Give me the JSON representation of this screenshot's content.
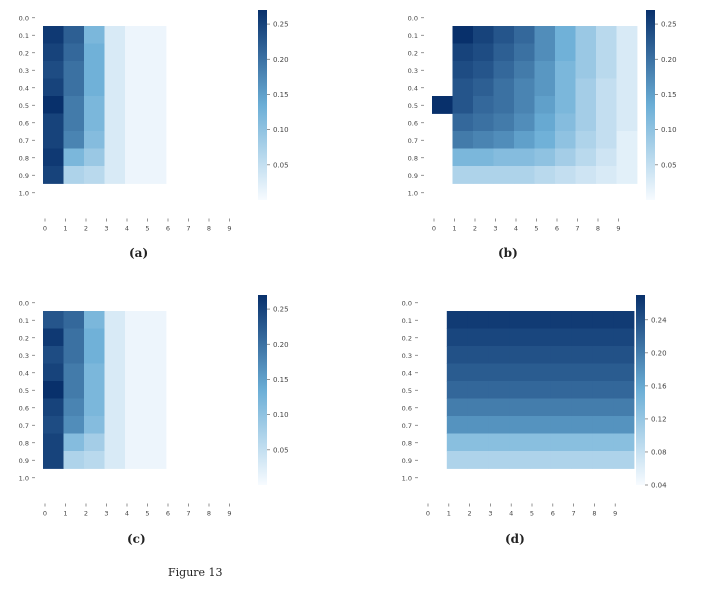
{
  "captions": [
    "(a)",
    "(b)",
    "(c)",
    "(d)"
  ],
  "figure_caption": "Figure 13",
  "colormap": {
    "low": "#f7fbff",
    "mid": "#6baed6",
    "high": "#08306b"
  },
  "chart_data": [
    {
      "type": "heatmap",
      "title": "",
      "x": [
        "0",
        "1",
        "2",
        "3",
        "4",
        "5",
        "6",
        "7",
        "8",
        "9"
      ],
      "y": [
        "0.0",
        "0.1",
        "0.2",
        "0.3",
        "0.4",
        "0.5",
        "0.6",
        "0.7",
        "0.8",
        "0.9",
        "1.0"
      ],
      "colorbar": {
        "min": 0.0,
        "max": 0.27,
        "ticks": [
          "0.25",
          "0.20",
          "0.15",
          "0.10",
          "0.05"
        ]
      },
      "values": [
        [
          0.26,
          0.22,
          0.12,
          0.03,
          0.01,
          0.01
        ],
        [
          0.25,
          0.21,
          0.13,
          0.03,
          0.01,
          0.01
        ],
        [
          0.24,
          0.2,
          0.13,
          0.03,
          0.01,
          0.01
        ],
        [
          0.25,
          0.2,
          0.13,
          0.03,
          0.01,
          0.01
        ],
        [
          0.27,
          0.19,
          0.12,
          0.03,
          0.01,
          0.01
        ],
        [
          0.25,
          0.19,
          0.12,
          0.03,
          0.01,
          0.01
        ],
        [
          0.25,
          0.18,
          0.11,
          0.03,
          0.01,
          0.01
        ],
        [
          0.26,
          0.12,
          0.09,
          0.03,
          0.01,
          0.01
        ],
        [
          0.25,
          0.07,
          0.06,
          0.03,
          0.01,
          0.01
        ]
      ]
    },
    {
      "type": "heatmap",
      "title": "",
      "x": [
        "0",
        "1",
        "2",
        "3",
        "4",
        "5",
        "6",
        "7",
        "8",
        "9"
      ],
      "y": [
        "0.0",
        "0.1",
        "0.2",
        "0.3",
        "0.4",
        "0.5",
        "0.6",
        "0.7",
        "0.8",
        "0.9",
        "1.0"
      ],
      "colorbar": {
        "min": 0.0,
        "max": 0.27,
        "ticks": [
          "0.25",
          "0.20",
          "0.15",
          "0.10",
          "0.05"
        ]
      },
      "values": [
        [
          null,
          0.27,
          0.25,
          0.23,
          0.21,
          0.17,
          0.13,
          0.09,
          0.06,
          0.03
        ],
        [
          null,
          0.25,
          0.24,
          0.22,
          0.2,
          0.17,
          0.13,
          0.09,
          0.06,
          0.03
        ],
        [
          null,
          0.24,
          0.23,
          0.21,
          0.19,
          0.16,
          0.12,
          0.09,
          0.06,
          0.03
        ],
        [
          null,
          0.23,
          0.22,
          0.2,
          0.18,
          0.16,
          0.12,
          0.08,
          0.05,
          0.03
        ],
        [
          0.27,
          0.23,
          0.21,
          0.2,
          0.18,
          0.15,
          0.12,
          0.08,
          0.05,
          0.03
        ],
        [
          null,
          0.21,
          0.2,
          0.19,
          0.17,
          0.14,
          0.11,
          0.08,
          0.05,
          0.03
        ],
        [
          null,
          0.19,
          0.18,
          0.17,
          0.15,
          0.13,
          0.1,
          0.07,
          0.05,
          0.02
        ],
        [
          null,
          0.12,
          0.12,
          0.11,
          0.11,
          0.1,
          0.08,
          0.06,
          0.04,
          0.02
        ],
        [
          null,
          0.07,
          0.07,
          0.07,
          0.07,
          0.06,
          0.05,
          0.04,
          0.03,
          0.02
        ]
      ]
    },
    {
      "type": "heatmap",
      "title": "",
      "x": [
        "0",
        "1",
        "2",
        "3",
        "4",
        "5",
        "6",
        "7",
        "8",
        "9"
      ],
      "y": [
        "0.0",
        "0.1",
        "0.2",
        "0.3",
        "0.4",
        "0.5",
        "0.6",
        "0.7",
        "0.8",
        "0.9",
        "1.0"
      ],
      "colorbar": {
        "min": 0.0,
        "max": 0.27,
        "ticks": [
          "0.25",
          "0.20",
          "0.15",
          "0.10",
          "0.05"
        ]
      },
      "values": [
        [
          0.23,
          0.21,
          0.12,
          0.03,
          0.01,
          0.01
        ],
        [
          0.26,
          0.2,
          0.13,
          0.03,
          0.01,
          0.01
        ],
        [
          0.24,
          0.2,
          0.13,
          0.03,
          0.01,
          0.01
        ],
        [
          0.25,
          0.19,
          0.12,
          0.03,
          0.01,
          0.01
        ],
        [
          0.27,
          0.19,
          0.12,
          0.03,
          0.01,
          0.01
        ],
        [
          0.25,
          0.18,
          0.12,
          0.03,
          0.01,
          0.01
        ],
        [
          0.24,
          0.17,
          0.11,
          0.03,
          0.01,
          0.01
        ],
        [
          0.25,
          0.11,
          0.08,
          0.03,
          0.01,
          0.01
        ],
        [
          0.25,
          0.07,
          0.06,
          0.03,
          0.01,
          0.01
        ]
      ]
    },
    {
      "type": "heatmap",
      "title": "",
      "x": [
        "0",
        "1",
        "2",
        "3",
        "4",
        "5",
        "6",
        "7",
        "8",
        "9"
      ],
      "y": [
        "0.0",
        "0.1",
        "0.2",
        "0.3",
        "0.4",
        "0.5",
        "0.6",
        "0.7",
        "0.8",
        "0.9",
        "1.0"
      ],
      "colorbar": {
        "min": 0.04,
        "max": 0.27,
        "ticks": [
          "0.24",
          "0.20",
          "0.16",
          "0.12",
          "0.08",
          "0.04"
        ]
      },
      "values": [
        [
          null,
          0.26,
          0.26,
          0.26,
          0.26,
          0.26,
          0.26,
          0.26,
          0.26,
          0.26
        ],
        [
          null,
          0.25,
          0.25,
          0.25,
          0.25,
          0.25,
          0.25,
          0.25,
          0.25,
          0.25
        ],
        [
          null,
          0.24,
          0.24,
          0.24,
          0.24,
          0.24,
          0.24,
          0.24,
          0.24,
          0.24
        ],
        [
          null,
          0.23,
          0.23,
          0.23,
          0.23,
          0.23,
          0.23,
          0.23,
          0.23,
          0.23
        ],
        [
          null,
          0.22,
          0.22,
          0.22,
          0.22,
          0.22,
          0.22,
          0.22,
          0.22,
          0.22
        ],
        [
          null,
          0.2,
          0.2,
          0.2,
          0.2,
          0.2,
          0.2,
          0.2,
          0.2,
          0.2
        ],
        [
          null,
          0.18,
          0.18,
          0.18,
          0.18,
          0.18,
          0.18,
          0.18,
          0.18,
          0.18
        ],
        [
          null,
          0.13,
          0.13,
          0.13,
          0.13,
          0.13,
          0.13,
          0.13,
          0.13,
          0.13
        ],
        [
          null,
          0.1,
          0.1,
          0.1,
          0.1,
          0.1,
          0.1,
          0.1,
          0.1,
          0.1
        ]
      ]
    }
  ]
}
